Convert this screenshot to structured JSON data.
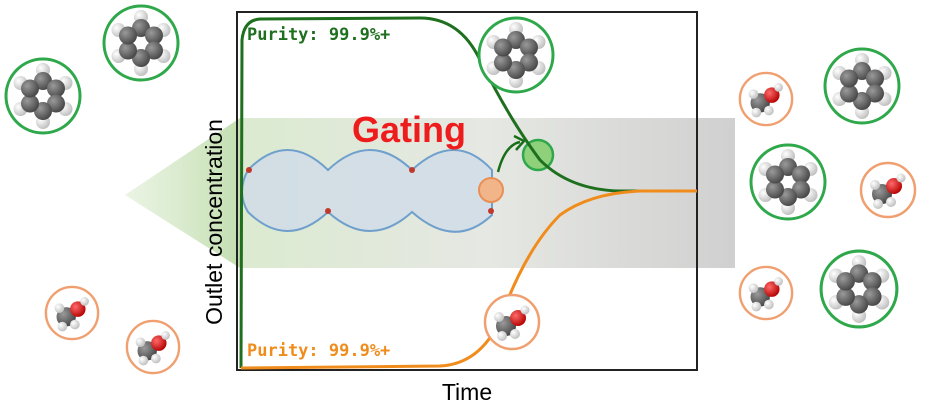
{
  "axes": {
    "x_label": "Time",
    "y_label": "Outlet concentration"
  },
  "annotations": {
    "top_purity": "Purity: 99.9%+",
    "bottom_purity": "Purity: 99.9%+",
    "gating": "Gating"
  }
}
